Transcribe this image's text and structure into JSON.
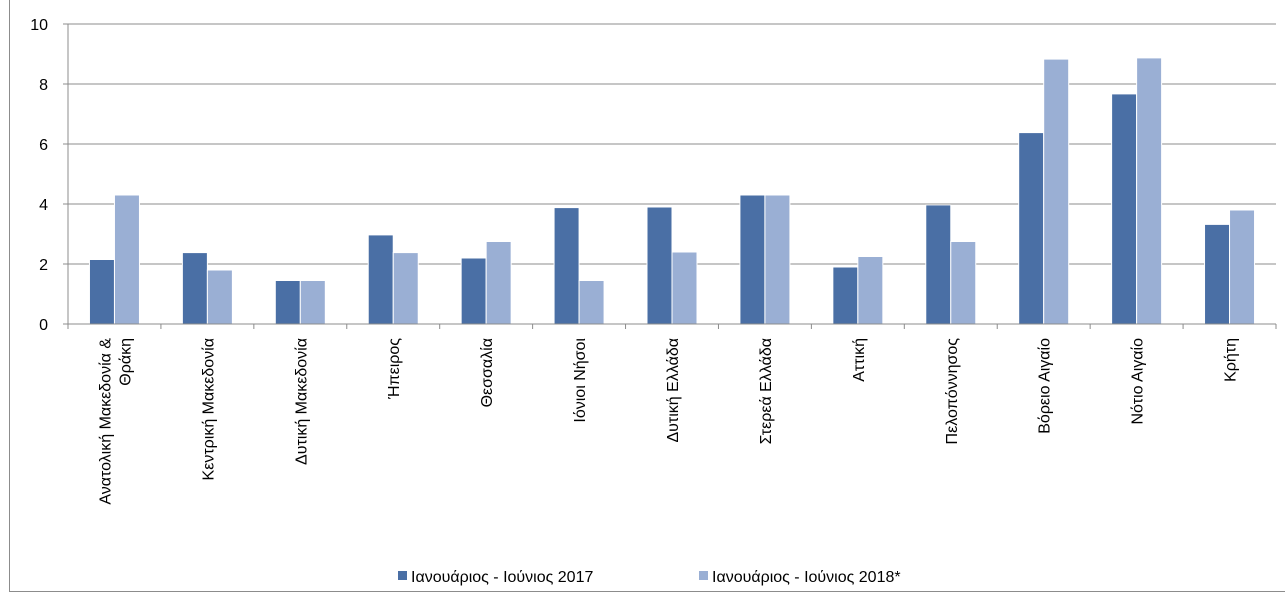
{
  "chart_data": {
    "type": "bar",
    "categories": [
      [
        "Ανατολική Μακεδονία &",
        "Θράκη"
      ],
      [
        "Κεντρική Μακεδονία"
      ],
      [
        "Δυτική Μακεδονία"
      ],
      [
        "Ήπειρος"
      ],
      [
        "Θεσσαλία"
      ],
      [
        "Ιόνιοι Νήσοι"
      ],
      [
        "Δυτική Ελλάδα"
      ],
      [
        "Στερεά Ελλάδα"
      ],
      [
        "Αττική"
      ],
      [
        "Πελοπόννησος"
      ],
      [
        "Βόρειο Αιγαίο"
      ],
      [
        "Νότιο Αιγαίο"
      ],
      [
        "Κρήτη"
      ]
    ],
    "series": [
      {
        "name": "Ιανουάριος - Ιούνιος 2017",
        "color": "#4a6fa5",
        "values": [
          2.15,
          2.38,
          1.45,
          2.97,
          2.2,
          3.88,
          3.9,
          4.3,
          1.9,
          3.97,
          6.38,
          7.67,
          3.32
        ]
      },
      {
        "name": "Ιανουάριος - Ιούνιος 2018*",
        "color": "#9aafd4",
        "values": [
          4.3,
          1.8,
          1.45,
          2.38,
          2.75,
          1.45,
          2.4,
          4.3,
          2.25,
          2.75,
          8.83,
          8.87,
          3.8
        ]
      }
    ],
    "ylim": [
      0,
      10
    ],
    "yticks": [
      0,
      2,
      4,
      6,
      8,
      10
    ],
    "grid": true,
    "legend_position": "bottom"
  }
}
